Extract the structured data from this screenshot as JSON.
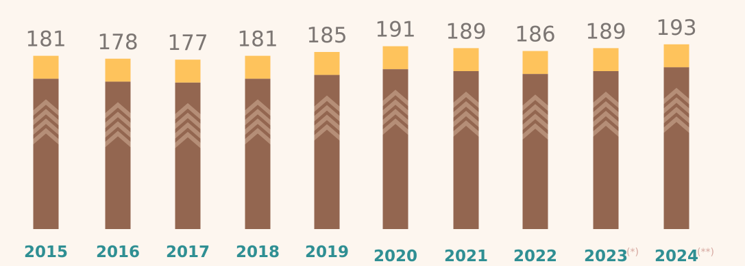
{
  "chart_data": {
    "type": "bar",
    "categories": [
      "2015",
      "2016",
      "2017",
      "2018",
      "2019",
      "2020",
      "2021",
      "2022",
      "2023",
      "2024"
    ],
    "category_notes": [
      "",
      "",
      "",
      "",
      "",
      "",
      "",
      "",
      "(*)",
      "(**)"
    ],
    "values": [
      181,
      178,
      177,
      181,
      185,
      191,
      189,
      186,
      189,
      193
    ],
    "title": "",
    "xlabel": "",
    "ylabel": "",
    "ylim": [
      0,
      200
    ],
    "grid": false,
    "colors": {
      "bar_top": "#fec35c",
      "bar_body": "#936650",
      "chevron": "#c09c84",
      "value_text": "#7c7673",
      "year_text": "#2f8f93",
      "note_text": "#d6a8a0",
      "background": "#fdf6ef"
    }
  }
}
